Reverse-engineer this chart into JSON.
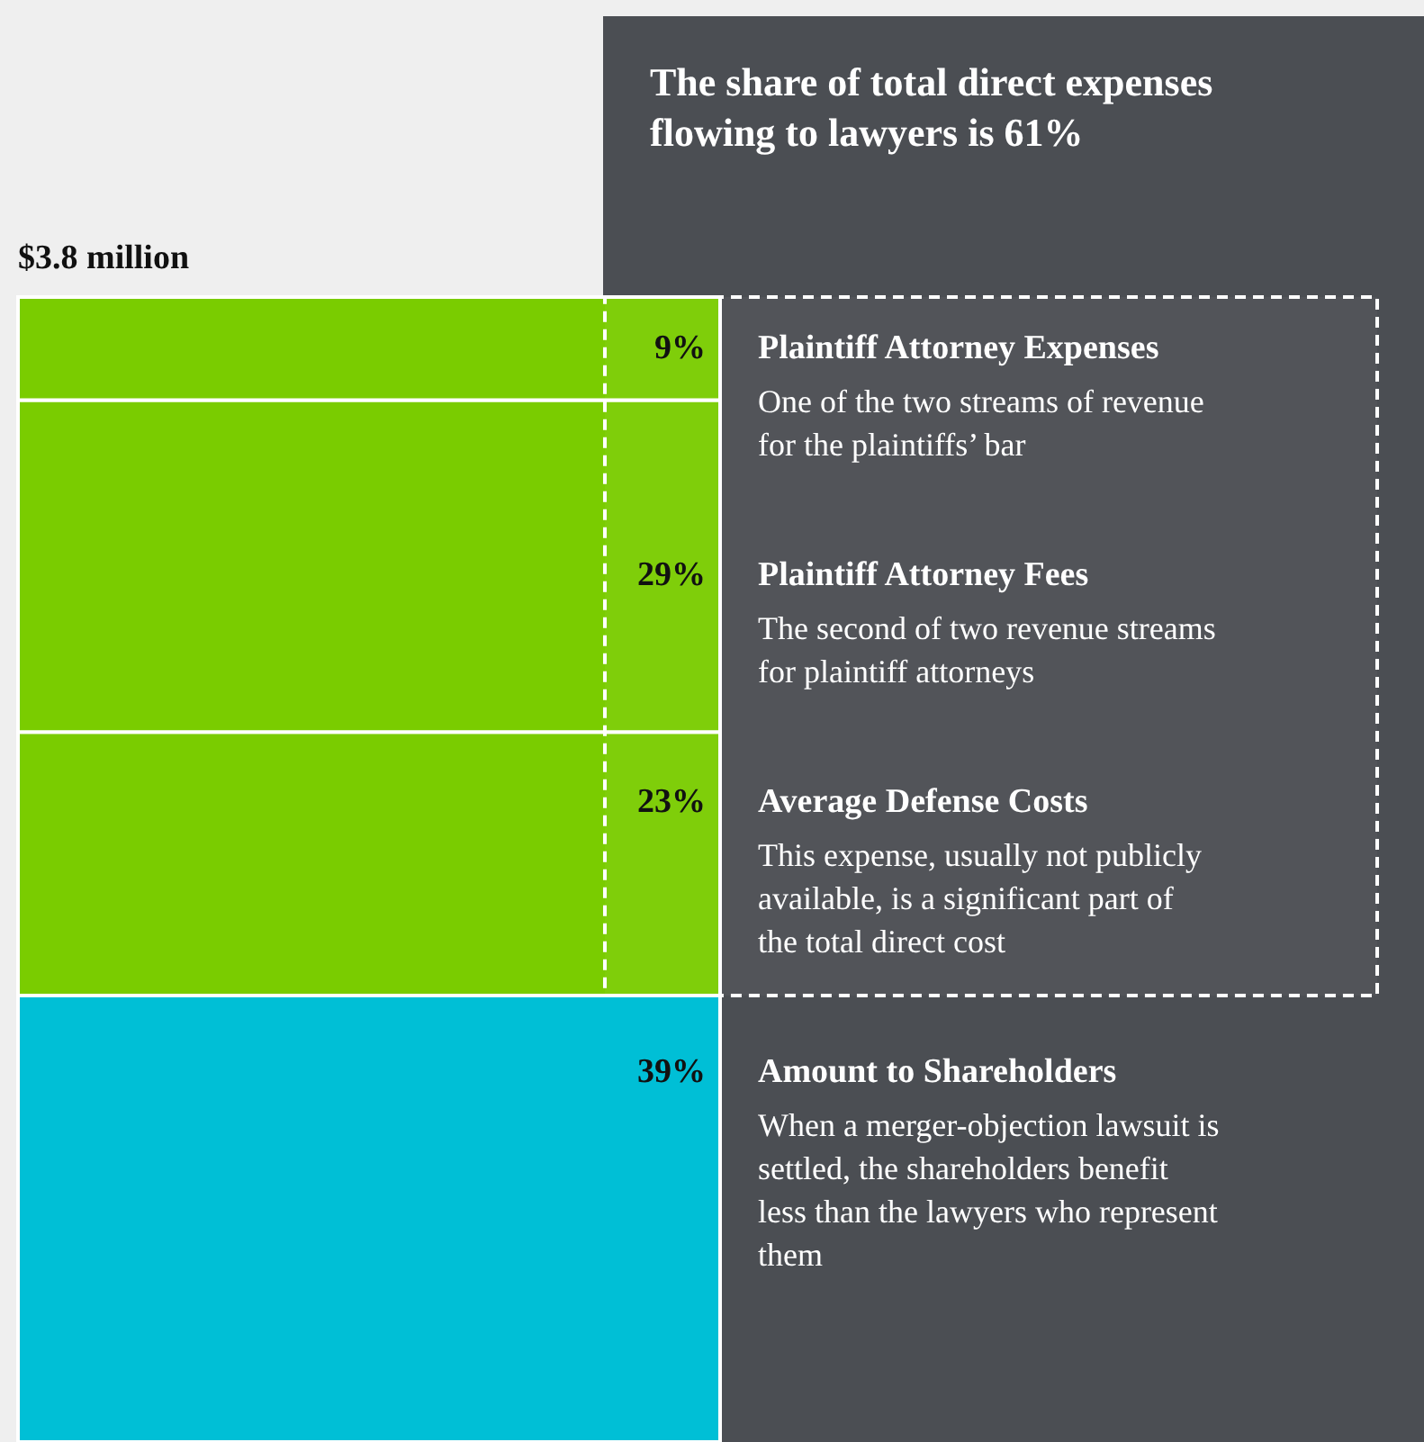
{
  "chart_data": {
    "type": "bar",
    "stacked": true,
    "title": "The share of total direct expenses flowing to lawyers is 61%",
    "categories": [
      null
    ],
    "series": [
      {
        "name": "Amount to Shareholders",
        "color": "#00bfd6",
        "values": [
          39
        ],
        "value_labels": [
          "39%"
        ]
      },
      {
        "name": "Average Defense Costs",
        "color": "#7acc00",
        "values": [
          23
        ],
        "value_labels": [
          "23%"
        ]
      },
      {
        "name": "Plaintiff Attorney Fees",
        "color": "#7acc00",
        "values": [
          29
        ],
        "value_labels": [
          "29%"
        ]
      },
      {
        "name": "Plaintiff Attorney Expenses",
        "color": "#7acc00",
        "values": [
          9
        ],
        "value_labels": [
          "9%"
        ]
      }
    ],
    "annotations": [
      "When a merger-objection lawsuit is settled, the shareholders benefit less than the lawyers who represent them",
      "This expense, usually not publicly available, is a significant part of the total direct cost",
      "The second of two revenue streams for plaintiff attorneys",
      "One of the two streams of revenue for the plaintiffs’ bar",
      {
        "text": "$3.8 million",
        "y": 100
      }
    ],
    "bands": [
      {
        "axis": "y",
        "from": 39,
        "to": 100,
        "color": "#ffffff"
      }
    ]
  }
}
